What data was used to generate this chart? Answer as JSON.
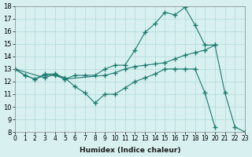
{
  "line1_x": [
    0,
    1,
    2,
    3,
    4,
    5,
    6,
    7,
    8,
    9,
    10,
    11,
    12,
    13,
    14,
    15,
    16,
    17,
    18,
    19,
    20
  ],
  "line1_y": [
    13.0,
    12.5,
    12.2,
    12.5,
    12.5,
    12.2,
    12.5,
    12.5,
    12.5,
    13.0,
    13.3,
    13.3,
    14.5,
    15.9,
    16.6,
    17.5,
    17.3,
    17.9,
    16.5,
    14.9,
    14.9
  ],
  "line2_x": [
    0,
    1,
    2,
    3,
    4,
    5,
    6,
    7,
    8,
    9,
    10,
    11,
    12,
    13,
    14,
    15,
    16,
    17,
    18,
    19,
    20
  ],
  "line2_y": [
    13.0,
    12.5,
    12.2,
    12.6,
    12.6,
    12.3,
    11.6,
    11.1,
    10.3,
    11.0,
    11.0,
    11.5,
    12.0,
    12.3,
    12.6,
    13.0,
    13.0,
    13.0,
    13.0,
    11.1,
    8.4
  ],
  "line3_x": [
    0,
    3,
    4,
    5,
    9,
    10,
    11,
    12,
    13,
    14,
    15,
    16,
    17,
    18,
    19,
    20,
    21,
    22,
    23
  ],
  "line3_y": [
    13.0,
    12.3,
    12.6,
    12.2,
    12.5,
    12.7,
    13.0,
    13.2,
    13.3,
    13.4,
    13.5,
    13.8,
    14.1,
    14.3,
    14.5,
    14.9,
    11.1,
    8.4,
    8.0
  ],
  "line_color": "#1a7a6e",
  "bg_color": "#d8f0f0",
  "grid_color": "#b0d8d8",
  "xlabel": "Humidex (Indice chaleur)",
  "xlim": [
    0,
    23
  ],
  "ylim": [
    8,
    18
  ],
  "xticks": [
    0,
    1,
    2,
    3,
    4,
    5,
    6,
    7,
    8,
    9,
    10,
    11,
    12,
    13,
    14,
    15,
    16,
    17,
    18,
    19,
    20,
    21,
    22,
    23
  ],
  "yticks": [
    8,
    9,
    10,
    11,
    12,
    13,
    14,
    15,
    16,
    17,
    18
  ]
}
